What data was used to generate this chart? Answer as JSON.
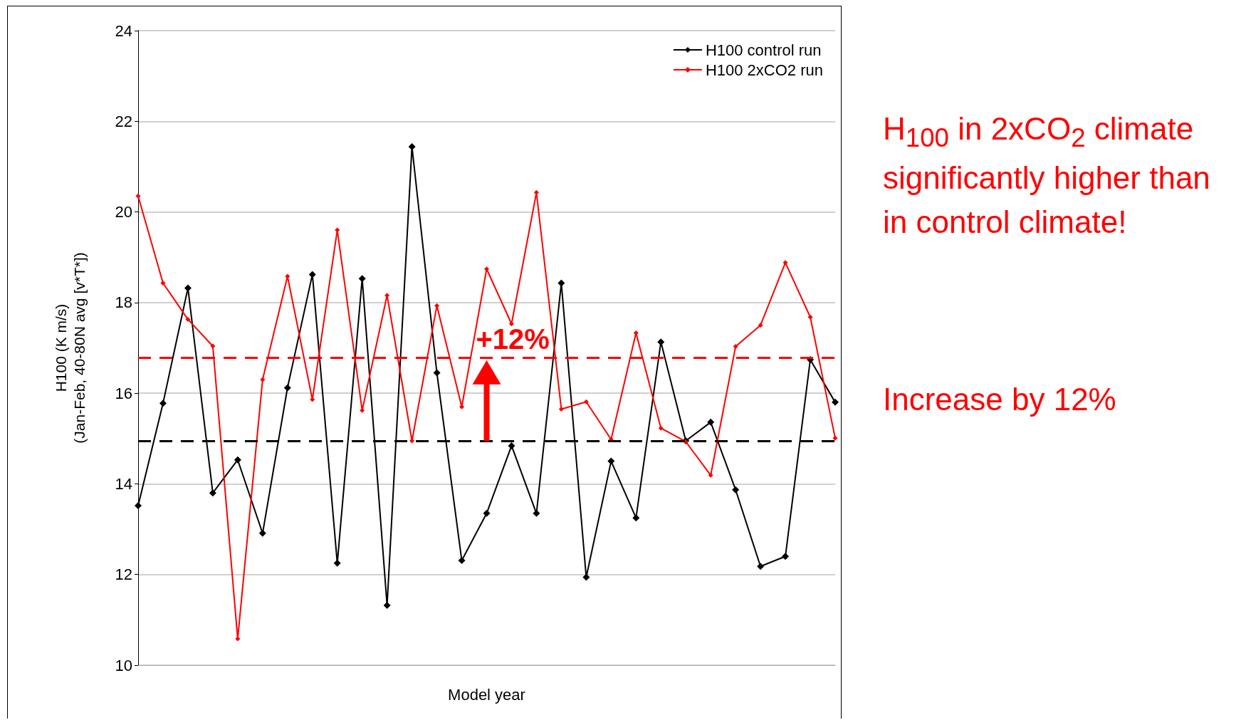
{
  "chart_data": {
    "type": "line",
    "ylabel": "H100 (K m/s)\n(Jan-Feb, 40-80N avg [v*T*])",
    "xlabel": "Model year",
    "categories": [
      null,
      null,
      null,
      null,
      null,
      null,
      null,
      null,
      null,
      null,
      null,
      null,
      null,
      null,
      null,
      null,
      null,
      null,
      null,
      null,
      null,
      null,
      null,
      null,
      null,
      null,
      null,
      null,
      null
    ],
    "series": [
      {
        "name": "H100 control run",
        "color": "#000000",
        "values": [
          13.52,
          15.78,
          18.32,
          13.8,
          14.53,
          12.91,
          16.12,
          18.62,
          12.25,
          18.53,
          11.32,
          21.44,
          16.45,
          12.31,
          13.35,
          14.84,
          13.35,
          18.43,
          11.94,
          14.5,
          13.25,
          17.13,
          14.95,
          15.36,
          13.87,
          12.18,
          12.4,
          16.74,
          15.8
        ]
      },
      {
        "name": "H100 2xCO2 run",
        "color": "#ff0000",
        "values": [
          20.35,
          18.43,
          17.63,
          17.04,
          10.58,
          16.3,
          18.58,
          15.86,
          19.6,
          15.62,
          18.16,
          14.95,
          17.93,
          15.7,
          18.74,
          17.53,
          20.43,
          15.65,
          15.81,
          14.98,
          17.33,
          15.23,
          14.93,
          14.19,
          17.03,
          17.5,
          18.88,
          17.68,
          15.01
        ]
      }
    ],
    "ylim": [
      10,
      24
    ],
    "yticks": [
      10,
      12,
      14,
      16,
      18,
      20,
      22,
      24
    ],
    "grid": "y",
    "legend": "top right",
    "marker": "diamond",
    "line_style": "solid",
    "ref_lines": [
      {
        "axis": "y",
        "value": 16.79,
        "color": "#ff0000",
        "line_style": "dashed"
      },
      {
        "axis": "y",
        "value": 14.95,
        "color": "#000000",
        "line_style": "dashed"
      }
    ],
    "annotations": [
      "+12%",
      "H$_{100}$ in 2xCO$_{2}$ climate significantly higher than in control climate!",
      "Increase by 12%"
    ]
  }
}
